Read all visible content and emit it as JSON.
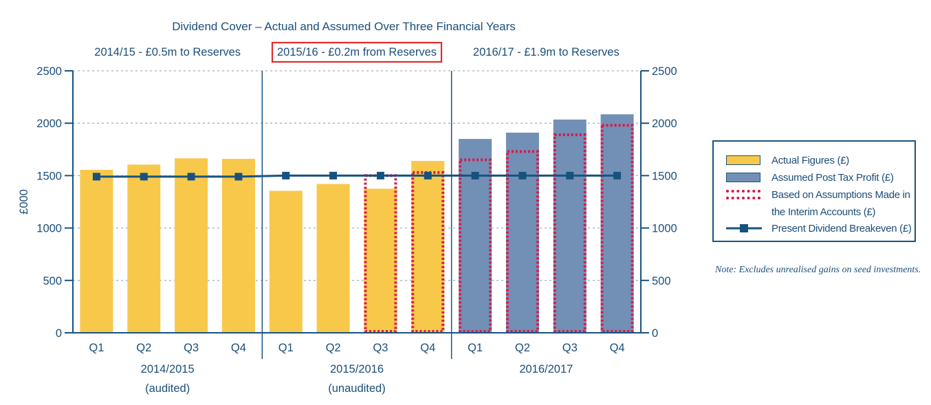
{
  "chart_data": {
    "type": "bar",
    "title": "Dividend Cover – Actual and Assumed Over Three Financial Years",
    "ylabel": "£000",
    "ylim": [
      0,
      2500
    ],
    "yticks": [
      0,
      500,
      1000,
      1500,
      2000,
      2500
    ],
    "grid": true,
    "periods": [
      {
        "label": "2014/15 - £0.5m to Reserves",
        "highlighted": false,
        "year_label": "2014/2015",
        "sub_label": "(audited)"
      },
      {
        "label": "2015/16 - £0.2m from Reserves",
        "highlighted": true,
        "year_label": "2015/2016",
        "sub_label": "(unaudited)"
      },
      {
        "label": "2016/17 - £1.9m to Reserves",
        "highlighted": false,
        "year_label": "2016/2017",
        "sub_label": ""
      }
    ],
    "categories": [
      "Q1",
      "Q2",
      "Q3",
      "Q4",
      "Q1",
      "Q2",
      "Q3",
      "Q4",
      "Q1",
      "Q2",
      "Q3",
      "Q4"
    ],
    "series": [
      {
        "name": "Actual Figures (£)",
        "kind": "bar",
        "color": "#f7c84a",
        "values": [
          1555,
          1605,
          1665,
          1660,
          1355,
          1420,
          1375,
          1640,
          null,
          null,
          null,
          null
        ]
      },
      {
        "name": "Assumed Post Tax Profit (£)",
        "kind": "bar",
        "color": "#7290b5",
        "values": [
          null,
          null,
          null,
          null,
          null,
          null,
          null,
          null,
          1850,
          1910,
          2035,
          2085
        ]
      },
      {
        "name": "Based on Assumptions Made in the Interim Accounts (£)",
        "kind": "dotted-outline",
        "color": "#d9184a",
        "values": [
          null,
          null,
          null,
          null,
          null,
          null,
          1500,
          1530,
          1650,
          1730,
          1890,
          1980
        ]
      },
      {
        "name": "Present Dividend Breakeven (£)",
        "kind": "line",
        "color": "#17527f",
        "values": [
          1490,
          1490,
          1490,
          1490,
          1500,
          1500,
          1500,
          1500,
          1500,
          1500,
          1500,
          1500
        ]
      }
    ],
    "legend_position": "right"
  },
  "legend": [
    {
      "swatch": "actual",
      "label_lines": [
        "Actual Figures (£)"
      ]
    },
    {
      "swatch": "assumed",
      "label_lines": [
        "Assumed Post Tax Profit (£)"
      ]
    },
    {
      "swatch": "interim",
      "label_lines": [
        "Based on Assumptions Made in",
        "the Interim Accounts (£)"
      ]
    },
    {
      "swatch": "breakeven",
      "label_lines": [
        "Present Dividend Breakeven (£)"
      ]
    }
  ],
  "note": "Note: Excludes unrealised gains on seed investments.",
  "colors": {
    "axis": "#17527f",
    "text": "#1b4e7a",
    "highlight_box": "#e02b2b",
    "grid": "#9fb3c8"
  }
}
